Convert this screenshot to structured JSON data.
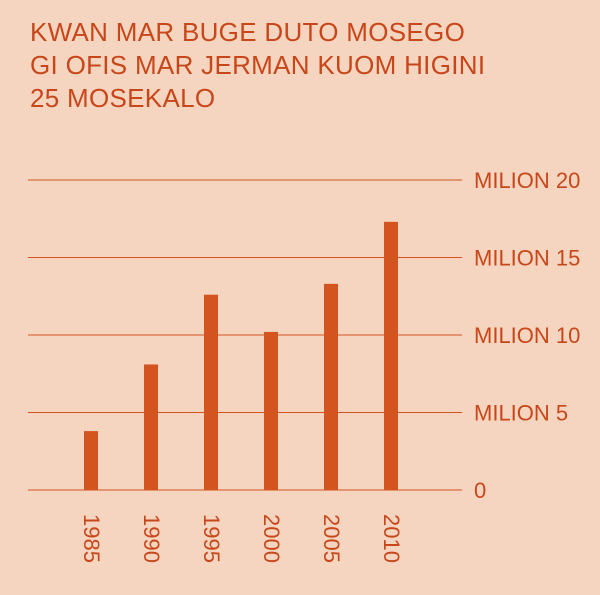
{
  "chart_data": {
    "type": "bar",
    "title": "KWAN MAR BUGE DUTO MOSEGO GI OFIS MAR JERMAN KUOM HIGINI 25 MOSEKALO",
    "categories": [
      "1985",
      "1990",
      "1995",
      "2000",
      "2005",
      "2010"
    ],
    "values": [
      3800000,
      8100000,
      12600000,
      10200000,
      13300000,
      17300000
    ],
    "y_ticks": [
      {
        "value": 0,
        "label": "0"
      },
      {
        "value": 5000000,
        "label": "MILION 5"
      },
      {
        "value": 10000000,
        "label": "MILION 10"
      },
      {
        "value": 15000000,
        "label": "MILION 15"
      },
      {
        "value": 20000000,
        "label": "MILION 20"
      }
    ],
    "ylim": [
      0,
      20000000
    ],
    "xlabel": "",
    "ylabel": "",
    "grid": true,
    "colors": {
      "background": "#f5d5bf",
      "bar": "#d4541f",
      "text": "#c8471a",
      "grid": "#d4541f"
    }
  }
}
